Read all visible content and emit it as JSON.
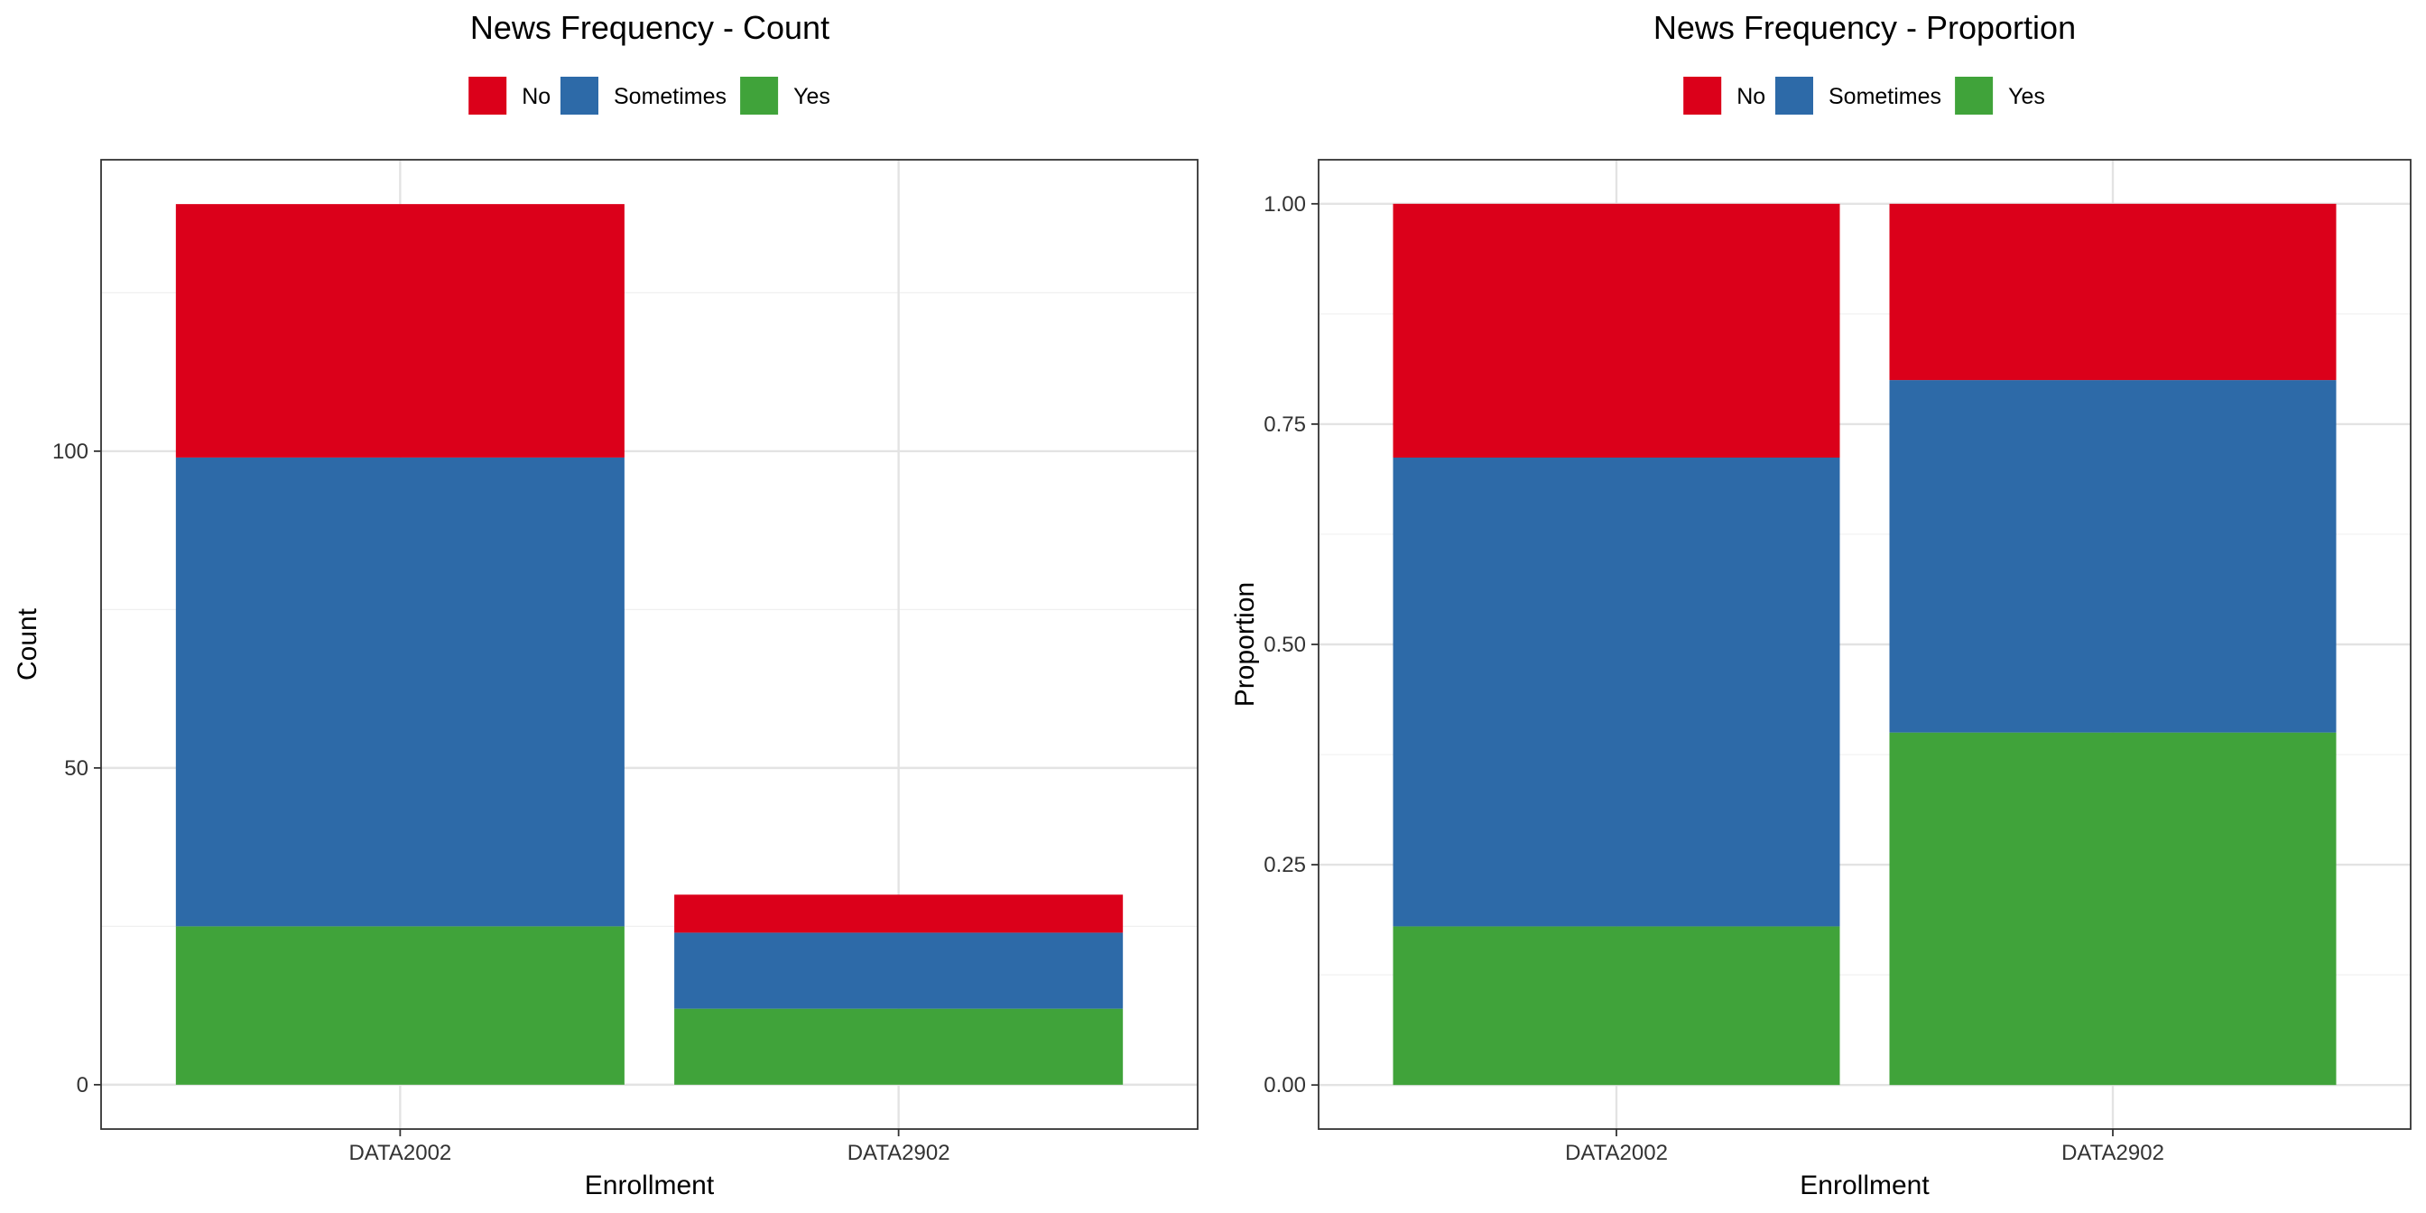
{
  "colors": {
    "No": "#DB001A",
    "Sometimes": "#2D6AA8",
    "Yes": "#40A33A"
  },
  "chart_data": [
    {
      "type": "bar",
      "stacked": true,
      "title": "News Frequency - Count",
      "xlabel": "Enrollment",
      "ylabel": "Count",
      "categories": [
        "DATA2002",
        "DATA2902"
      ],
      "series": [
        {
          "name": "Yes",
          "values": [
            25,
            12
          ]
        },
        {
          "name": "Sometimes",
          "values": [
            74,
            12
          ]
        },
        {
          "name": "No",
          "values": [
            40,
            6
          ]
        }
      ],
      "ylim": [
        -7,
        146
      ],
      "yticks": [
        0,
        50,
        100
      ],
      "ytick_labels": [
        "0",
        "50",
        "100"
      ],
      "legend": {
        "position": "top",
        "entries": [
          "No",
          "Sometimes",
          "Yes"
        ]
      },
      "grid": true
    },
    {
      "type": "bar",
      "stacked": true,
      "title": "News Frequency - Proportion",
      "xlabel": "Enrollment",
      "ylabel": "Proportion",
      "categories": [
        "DATA2002",
        "DATA2902"
      ],
      "series": [
        {
          "name": "Yes",
          "values": [
            0.18,
            0.4
          ]
        },
        {
          "name": "Sometimes",
          "values": [
            0.532,
            0.4
          ]
        },
        {
          "name": "No",
          "values": [
            0.288,
            0.2
          ]
        }
      ],
      "ylim": [
        -0.05,
        1.05
      ],
      "yticks": [
        0,
        0.25,
        0.5,
        0.75,
        1
      ],
      "ytick_labels": [
        "0.00",
        "0.25",
        "0.50",
        "0.75",
        "1.00"
      ],
      "legend": {
        "position": "top",
        "entries": [
          "No",
          "Sometimes",
          "Yes"
        ]
      },
      "grid": true
    }
  ]
}
